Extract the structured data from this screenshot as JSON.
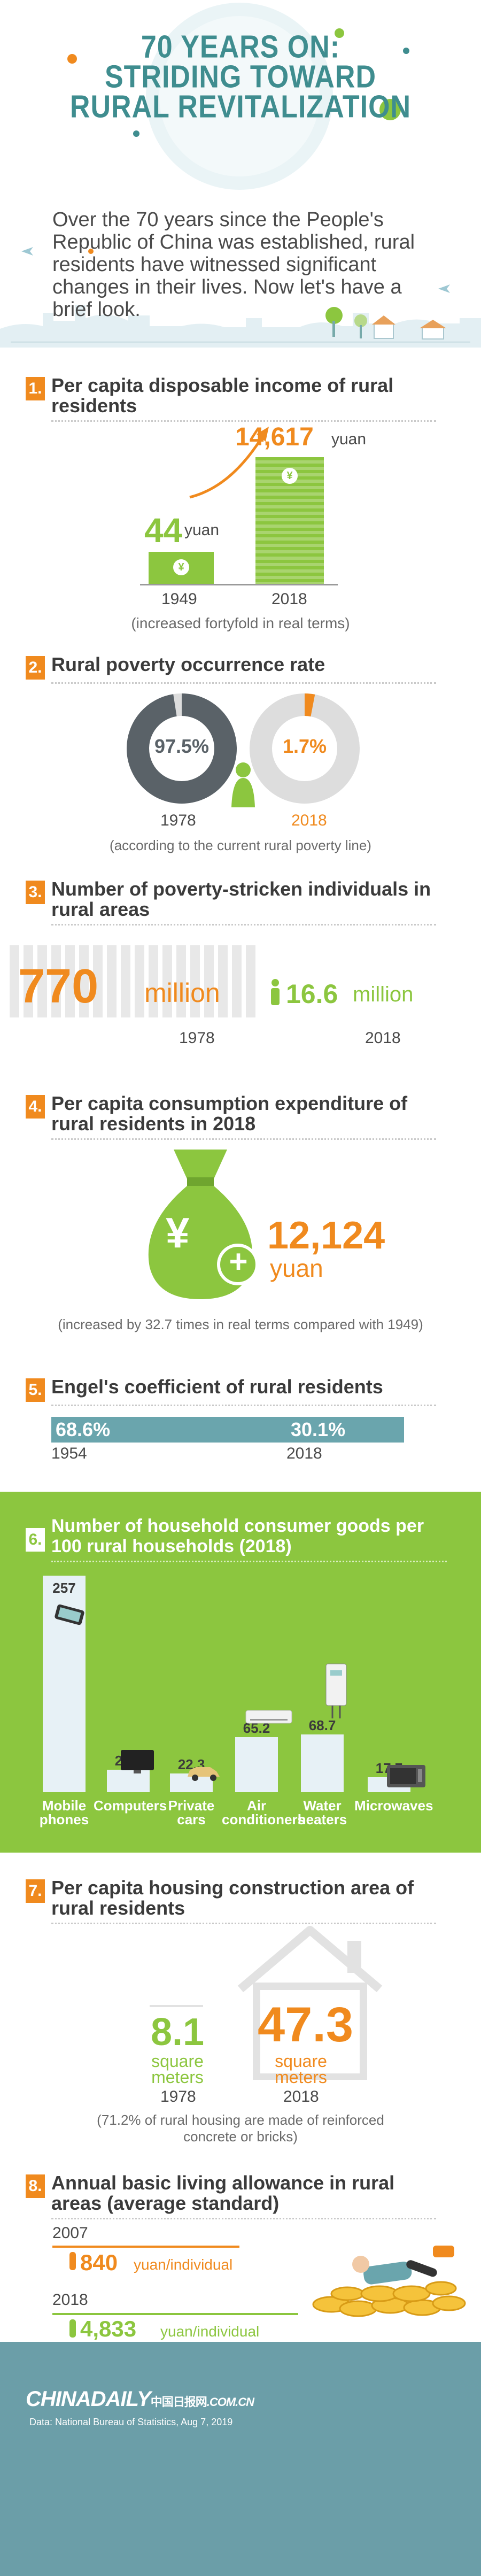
{
  "title": {
    "line1": "70 YEARS ON:",
    "line2": "STRIDING TOWARD",
    "line3": "RURAL REVITALIZATION"
  },
  "intro": "Over the 70 years since the People's Republic of China was established, rural residents have witnessed significant changes in their lives. Now let's have a brief look.",
  "s1": {
    "num": "1.",
    "title": "Per capita disposable income of rural residents",
    "v1949": "44",
    "v2018": "14,617",
    "unit": "yuan",
    "y1949": "1949",
    "y2018": "2018",
    "note": "(increased fortyfold in real terms)",
    "coin": "¥"
  },
  "s2": {
    "num": "2.",
    "title": "Rural poverty occurrence rate",
    "v1978": "97.5%",
    "v2018": "1.7%",
    "y1978": "1978",
    "y2018": "2018",
    "frac1978": 0.975,
    "frac2018": 0.017,
    "note": "(according to the current rural poverty line)"
  },
  "s3": {
    "num": "3.",
    "title": "Number of poverty-stricken individuals in rural areas",
    "v1978": "770",
    "v2018": "16.6",
    "unit": "million",
    "y1978": "1978",
    "y2018": "2018"
  },
  "s4": {
    "num": "4.",
    "title": "Per capita consumption expenditure of rural residents in 2018",
    "value": "12,124",
    "unit": "yuan",
    "yen": "¥",
    "plus": "+",
    "note": "(increased by 32.7 times in real terms compared with 1949)"
  },
  "s5": {
    "num": "5.",
    "title": "Engel's coefficient of rural residents",
    "v1954": "68.6%",
    "v2018": "30.1%",
    "y1954": "1954",
    "y2018": "2018"
  },
  "s6": {
    "num": "6.",
    "title": "Number of household consumer goods per 100 rural households (2018)",
    "chart_data": {
      "type": "bar",
      "categories": [
        "Mobile phones",
        "Computers",
        "Private cars",
        "Air conditioners",
        "Water heaters",
        "Microwaves"
      ],
      "values": [
        257,
        26.9,
        22.3,
        65.2,
        68.7,
        17.7
      ],
      "labels": [
        "257",
        "26.9",
        "22.3",
        "65.2",
        "68.7",
        "17.7"
      ]
    },
    "cat_lines": [
      [
        "Mobile",
        "phones"
      ],
      [
        "Computers",
        ""
      ],
      [
        "Private",
        "cars"
      ],
      [
        "Air",
        "conditioners"
      ],
      [
        "Water",
        "heaters"
      ],
      [
        "Microwaves",
        ""
      ]
    ]
  },
  "s7": {
    "num": "7.",
    "title": "Per capita housing construction area of rural residents",
    "v1978": "8.1",
    "v2018": "47.3",
    "unit_l1": "square",
    "unit_l2": "meters",
    "y1978": "1978",
    "y2018": "2018",
    "note1": "(71.2% of rural housing are made of reinforced",
    "note2": "concrete or bricks)"
  },
  "s8": {
    "num": "8.",
    "title": "Annual basic living allowance in rural areas (average standard)",
    "y2007": "2007",
    "v2007": "840",
    "y2018": "2018",
    "v2018": "4,833",
    "unit": "yuan/individual"
  },
  "footer": {
    "brand": "CHINADAILY",
    "brand_cn": "中国日报网",
    "domain": ".COM.CN",
    "source": "Data: National Bureau of Statistics, Aug 7, 2019"
  },
  "colors": {
    "teal": "#3f8d8f",
    "orange": "#f08a1e",
    "green": "#8cc63f",
    "slate": "#6aa5ad",
    "dark_gray": "#5a5a5a",
    "footer": "#6b9ea8"
  }
}
